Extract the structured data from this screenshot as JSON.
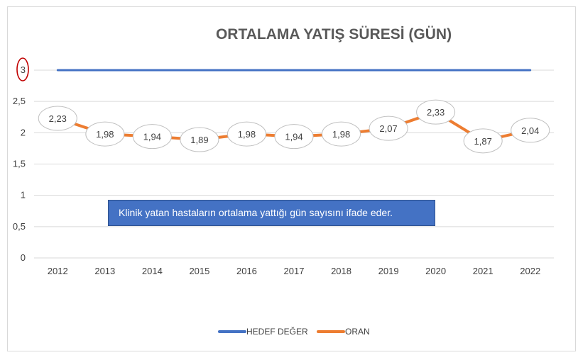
{
  "chart_data": {
    "type": "line",
    "title": "ORTALAMA YATIŞ SÜRESİ (GÜN)",
    "categories": [
      "2012",
      "2013",
      "2014",
      "2015",
      "2016",
      "2017",
      "2018",
      "2019",
      "2020",
      "2021",
      "2022"
    ],
    "series": [
      {
        "name": "HEDEF DEĞER",
        "color": "#4472c4",
        "values": [
          3,
          3,
          3,
          3,
          3,
          3,
          3,
          3,
          3,
          3,
          3
        ]
      },
      {
        "name": "ORAN",
        "color": "#ed7d31",
        "values": [
          2.23,
          1.98,
          1.94,
          1.89,
          1.98,
          1.94,
          1.98,
          2.07,
          2.33,
          1.87,
          2.04
        ]
      }
    ],
    "data_labels": [
      "2,23",
      "1,98",
      "1,94",
      "1,89",
      "1,98",
      "1,94",
      "1,98",
      "2,07",
      "2,33",
      "1,87",
      "2,04"
    ],
    "y_ticks": [
      {
        "value": 0,
        "label": "0"
      },
      {
        "value": 0.5,
        "label": "0,5"
      },
      {
        "value": 1,
        "label": "1"
      },
      {
        "value": 1.5,
        "label": "1,5"
      },
      {
        "value": 2,
        "label": "2"
      },
      {
        "value": 2.5,
        "label": "2,5"
      },
      {
        "value": 3,
        "label": "3"
      }
    ],
    "highlighted_tick": "3",
    "ylim": [
      0,
      3
    ],
    "grid": true,
    "legend_position": "bottom",
    "annotation": "Klinik  yatan hastaların ortalama yattığı gün sayısını ifade eder."
  }
}
